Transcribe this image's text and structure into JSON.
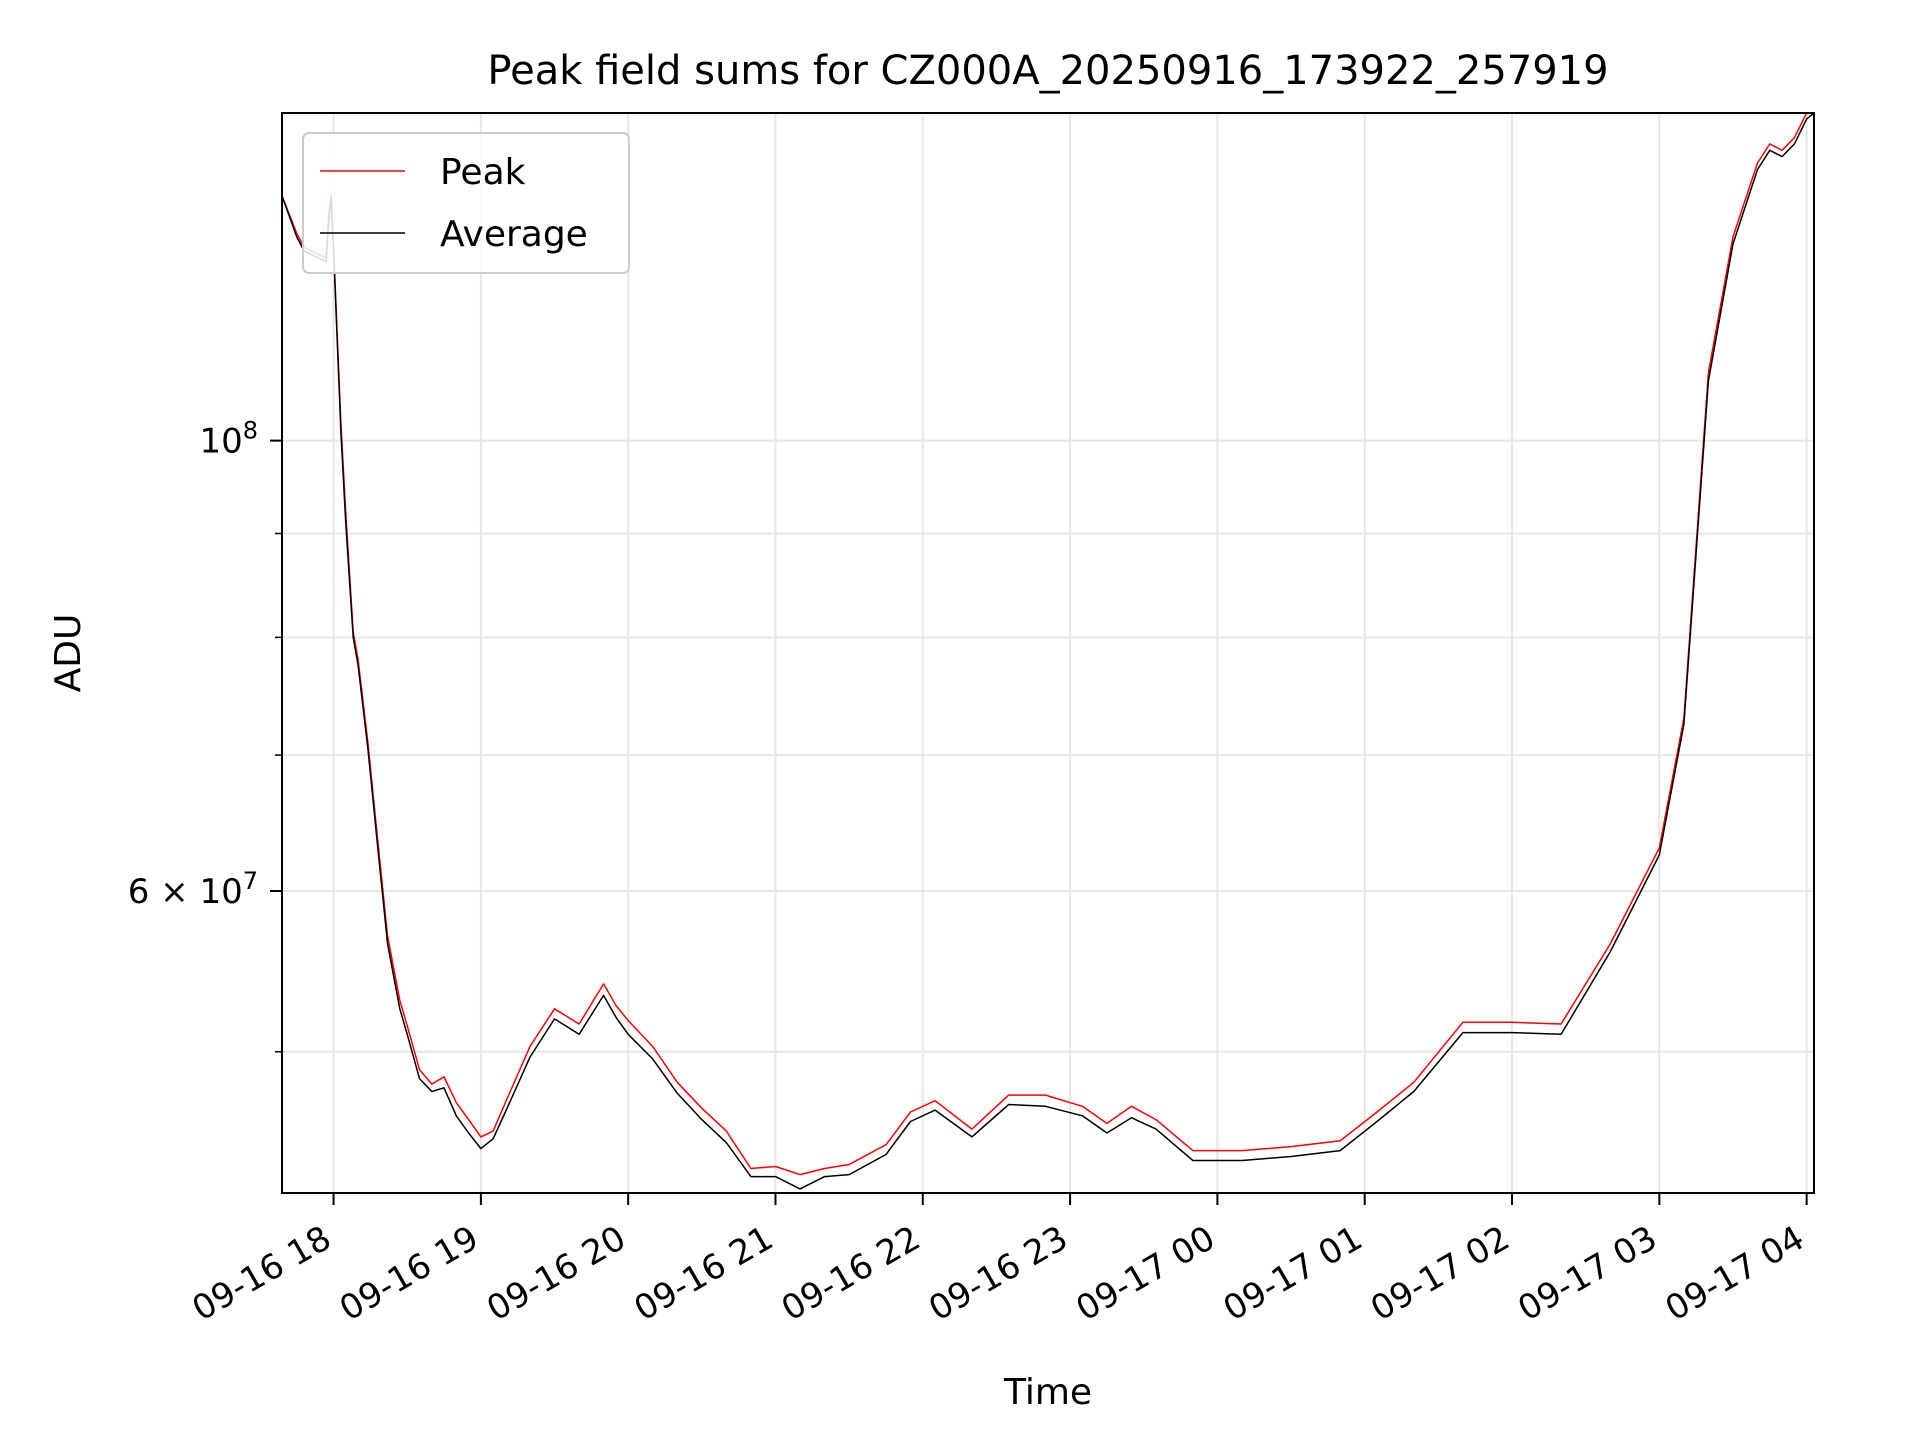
{
  "chart_data": {
    "type": "line",
    "title": "Peak field sums for CZ000A_20250916_173922_257919",
    "xlabel": "Time",
    "ylabel": "ADU",
    "yscale": "log",
    "grid": true,
    "legend_placement": "upper-left",
    "xlim": [
      "09-16 17:39",
      "09-17 04:03"
    ],
    "ylim": [
      42600000,
      145000000
    ],
    "x_ticks": [
      "09-16 18",
      "09-16 19",
      "09-16 20",
      "09-16 21",
      "09-16 22",
      "09-16 23",
      "09-17 00",
      "09-17 01",
      "09-17 02",
      "09-17 03",
      "09-17 04"
    ],
    "y_major_ticks": [
      {
        "value": 100000000,
        "label_base": "10",
        "label_exp": "8"
      },
      {
        "value": 60000000,
        "label_base": "6 × 10",
        "label_exp": "7"
      }
    ],
    "y_minor_ticks": [
      50000000,
      70000000,
      80000000,
      90000000
    ],
    "series": [
      {
        "name": "Peak",
        "color": "#ff0000",
        "x": [
          "09-16 17:39",
          "09-16 17:45",
          "09-16 17:48",
          "09-16 17:57",
          "09-16 17:58",
          "09-16 17:59",
          "09-16 18:00",
          "09-16 18:03",
          "09-16 18:05",
          "09-16 18:08",
          "09-16 18:10",
          "09-16 18:14",
          "09-16 18:18",
          "09-16 18:22",
          "09-16 18:27",
          "09-16 18:30",
          "09-16 18:35",
          "09-16 18:40",
          "09-16 18:45",
          "09-16 18:50",
          "09-16 18:55",
          "09-16 19:00",
          "09-16 19:05",
          "09-16 19:10",
          "09-16 19:20",
          "09-16 19:30",
          "09-16 19:40",
          "09-16 19:50",
          "09-16 19:55",
          "09-16 20:00",
          "09-16 20:10",
          "09-16 20:20",
          "09-16 20:30",
          "09-16 20:40",
          "09-16 20:50",
          "09-16 21:00",
          "09-16 21:10",
          "09-16 21:20",
          "09-16 21:30",
          "09-16 21:45",
          "09-16 21:55",
          "09-16 22:05",
          "09-16 22:20",
          "09-16 22:35",
          "09-16 22:50",
          "09-16 23:05",
          "09-16 23:15",
          "09-16 23:25",
          "09-16 23:35",
          "09-16 23:50",
          "09-17 00:10",
          "09-17 00:30",
          "09-17 00:50",
          "09-17 01:05",
          "09-17 01:20",
          "09-17 01:40",
          "09-17 02:00",
          "09-17 02:20",
          "09-17 02:40",
          "09-17 03:00",
          "09-17 03:10",
          "09-17 03:20",
          "09-17 03:30",
          "09-17 03:40",
          "09-17 03:45",
          "09-17 03:50",
          "09-17 03:55",
          "09-17 04:00",
          "09-17 04:03"
        ],
        "values": [
          132000000,
          126500000,
          124500000,
          123000000,
          129000000,
          132000000,
          124500000,
          102000000,
          92000000,
          80500000,
          78000000,
          71000000,
          63500000,
          57000000,
          53000000,
          51500000,
          49000000,
          48200000,
          48600000,
          47200000,
          46300000,
          45400000,
          45700000,
          47200000,
          50300000,
          52500000,
          51600000,
          54000000,
          52700000,
          51800000,
          50300000,
          48300000,
          46900000,
          45700000,
          43800000,
          43900000,
          43500000,
          43800000,
          44000000,
          45000000,
          46700000,
          47300000,
          45800000,
          47600000,
          47600000,
          47000000,
          46100000,
          47000000,
          46300000,
          44700000,
          44700000,
          44900000,
          45200000,
          46700000,
          48300000,
          51700000,
          51700000,
          51600000,
          56500000,
          63000000,
          73000000,
          108000000,
          126000000,
          137000000,
          140000000,
          139000000,
          141000000,
          145000000,
          145000000
        ]
      },
      {
        "name": "Average",
        "color": "#000000",
        "x": [
          "09-16 17:39",
          "09-16 17:45",
          "09-16 17:48",
          "09-16 17:57",
          "09-16 17:58",
          "09-16 17:59",
          "09-16 18:00",
          "09-16 18:03",
          "09-16 18:05",
          "09-16 18:08",
          "09-16 18:10",
          "09-16 18:14",
          "09-16 18:18",
          "09-16 18:22",
          "09-16 18:27",
          "09-16 18:30",
          "09-16 18:35",
          "09-16 18:40",
          "09-16 18:45",
          "09-16 18:50",
          "09-16 18:55",
          "09-16 19:00",
          "09-16 19:05",
          "09-16 19:10",
          "09-16 19:20",
          "09-16 19:30",
          "09-16 19:40",
          "09-16 19:50",
          "09-16 19:55",
          "09-16 20:00",
          "09-16 20:10",
          "09-16 20:20",
          "09-16 20:30",
          "09-16 20:40",
          "09-16 20:50",
          "09-16 21:00",
          "09-16 21:10",
          "09-16 21:20",
          "09-16 21:30",
          "09-16 21:45",
          "09-16 21:55",
          "09-16 22:05",
          "09-16 22:20",
          "09-16 22:35",
          "09-16 22:50",
          "09-16 23:05",
          "09-16 23:15",
          "09-16 23:25",
          "09-16 23:35",
          "09-16 23:50",
          "09-17 00:10",
          "09-17 00:30",
          "09-17 00:50",
          "09-17 01:05",
          "09-17 01:20",
          "09-17 01:40",
          "09-17 02:00",
          "09-17 02:20",
          "09-17 02:40",
          "09-17 03:00",
          "09-17 03:10",
          "09-17 03:20",
          "09-17 03:30",
          "09-17 03:40",
          "09-17 03:45",
          "09-17 03:50",
          "09-17 03:55",
          "09-17 04:00",
          "09-17 04:03"
        ],
        "values": [
          132000000,
          126000000,
          124000000,
          122500000,
          128000000,
          131500000,
          124000000,
          101000000,
          91000000,
          80000000,
          77500000,
          70500000,
          63000000,
          56500000,
          52500000,
          51000000,
          48500000,
          47800000,
          48000000,
          46500000,
          45600000,
          44800000,
          45300000,
          46700000,
          49700000,
          51900000,
          51000000,
          53300000,
          52000000,
          51000000,
          49600000,
          47700000,
          46300000,
          45100000,
          43400000,
          43400000,
          42800000,
          43400000,
          43500000,
          44500000,
          46200000,
          46800000,
          45400000,
          47100000,
          47000000,
          46500000,
          45600000,
          46400000,
          45800000,
          44200000,
          44200000,
          44400000,
          44700000,
          46200000,
          47800000,
          51100000,
          51100000,
          51000000,
          56000000,
          62500000,
          72500000,
          107000000,
          125000000,
          136000000,
          139000000,
          138000000,
          140000000,
          144000000,
          145000000
        ]
      }
    ]
  }
}
